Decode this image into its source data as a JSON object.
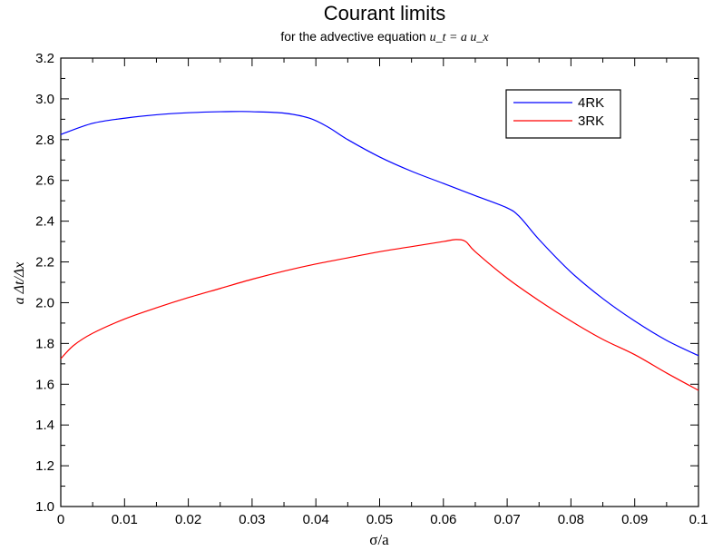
{
  "chart_data": {
    "type": "line",
    "title": "Courant limits",
    "subtitle": {
      "prefix": "for the advective equation ",
      "equation": "u_t = a u_x"
    },
    "xlabel": "σ/a",
    "ylabel": "a Δt/Δx",
    "xlim": [
      0,
      0.1
    ],
    "ylim": [
      1.0,
      3.2
    ],
    "x_ticks": [
      0,
      0.01,
      0.02,
      0.03,
      0.04,
      0.05,
      0.06,
      0.07,
      0.08,
      0.09,
      0.1
    ],
    "x_tick_labels": [
      "0",
      "0.01",
      "0.02",
      "0.03",
      "0.04",
      "0.05",
      "0.06",
      "0.07",
      "0.08",
      "0.09",
      "0.1"
    ],
    "y_ticks": [
      1.0,
      1.2,
      1.4,
      1.6,
      1.8,
      2.0,
      2.2,
      2.4,
      2.6,
      2.8,
      3.0,
      3.2
    ],
    "y_tick_labels": [
      "1.0",
      "1.2",
      "1.4",
      "1.6",
      "1.8",
      "2.0",
      "2.2",
      "2.4",
      "2.6",
      "2.8",
      "3.0",
      "3.2"
    ],
    "grid": false,
    "legend_position": "top-right",
    "series": [
      {
        "name": "4RK",
        "color": "#0000ff",
        "x": [
          0,
          0.005,
          0.01,
          0.015,
          0.02,
          0.025,
          0.028,
          0.03,
          0.035,
          0.039,
          0.042,
          0.045,
          0.05,
          0.055,
          0.06,
          0.065,
          0.07,
          0.072,
          0.075,
          0.08,
          0.085,
          0.09,
          0.095,
          0.1
        ],
        "y": [
          2.825,
          2.88,
          2.905,
          2.922,
          2.932,
          2.937,
          2.938,
          2.937,
          2.93,
          2.905,
          2.86,
          2.8,
          2.715,
          2.645,
          2.585,
          2.525,
          2.465,
          2.42,
          2.31,
          2.15,
          2.02,
          1.91,
          1.815,
          1.74
        ]
      },
      {
        "name": "3RK",
        "color": "#ff0000",
        "x": [
          0,
          0.002,
          0.005,
          0.01,
          0.015,
          0.02,
          0.025,
          0.03,
          0.035,
          0.04,
          0.045,
          0.05,
          0.055,
          0.06,
          0.062,
          0.0635,
          0.065,
          0.07,
          0.075,
          0.08,
          0.085,
          0.09,
          0.095,
          0.1
        ],
        "y": [
          1.725,
          1.79,
          1.85,
          1.92,
          1.975,
          2.025,
          2.07,
          2.115,
          2.155,
          2.19,
          2.22,
          2.25,
          2.275,
          2.3,
          2.31,
          2.3,
          2.25,
          2.12,
          2.01,
          1.91,
          1.82,
          1.745,
          1.655,
          1.57
        ]
      }
    ]
  }
}
